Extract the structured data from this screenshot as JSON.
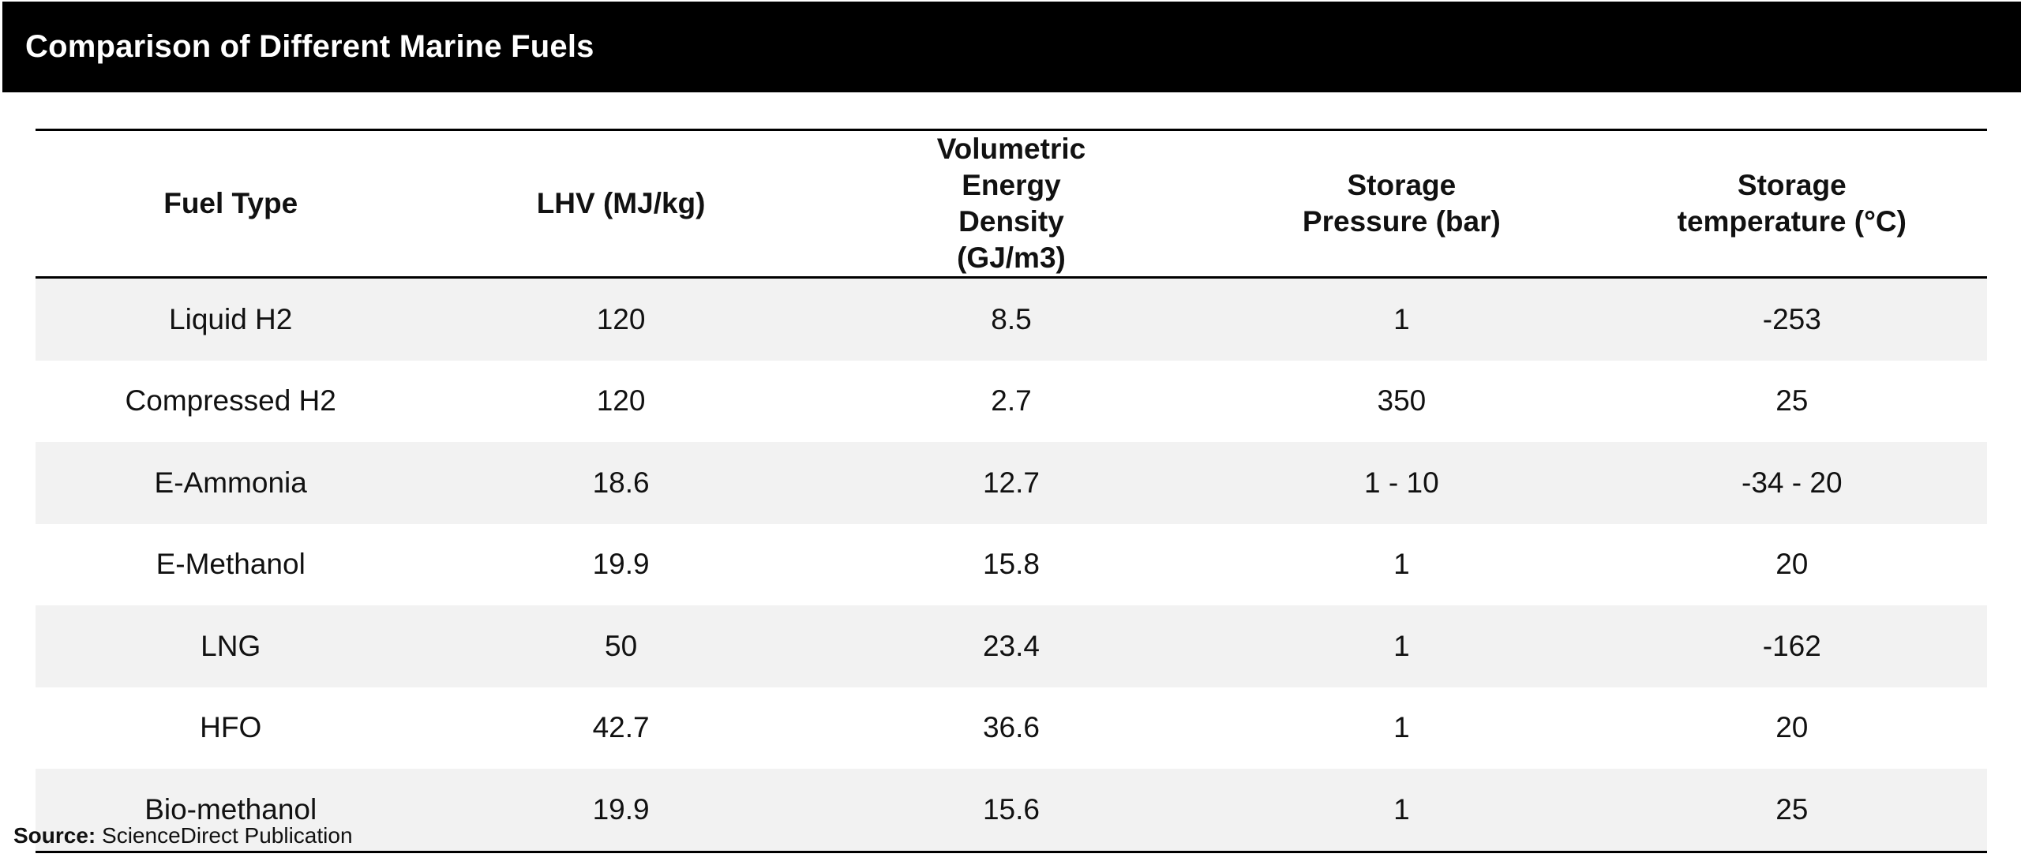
{
  "title": "Comparison of Different Marine Fuels",
  "table": {
    "headers": [
      "Fuel Type",
      "LHV (MJ/kg)",
      "Volumetric Energy Density (GJ/m3)",
      "Storage Pressure (bar)",
      "Storage temperature (°C)"
    ],
    "rows": [
      [
        "Liquid H2",
        "120",
        "8.5",
        "1",
        "-253"
      ],
      [
        "Compressed H2",
        "120",
        "2.7",
        "350",
        "25"
      ],
      [
        "E-Ammonia",
        "18.6",
        "12.7",
        "1 - 10",
        "-34 - 20"
      ],
      [
        "E-Methanol",
        "19.9",
        "15.8",
        "1",
        "20"
      ],
      [
        "LNG",
        "50",
        "23.4",
        "1",
        "-162"
      ],
      [
        "HFO",
        "42.7",
        "36.6",
        "1",
        "20"
      ],
      [
        "Bio-methanol",
        "19.9",
        "15.6",
        "1",
        "25"
      ]
    ]
  },
  "source": {
    "label": "Source:",
    "text": "ScienceDirect Publication"
  }
}
